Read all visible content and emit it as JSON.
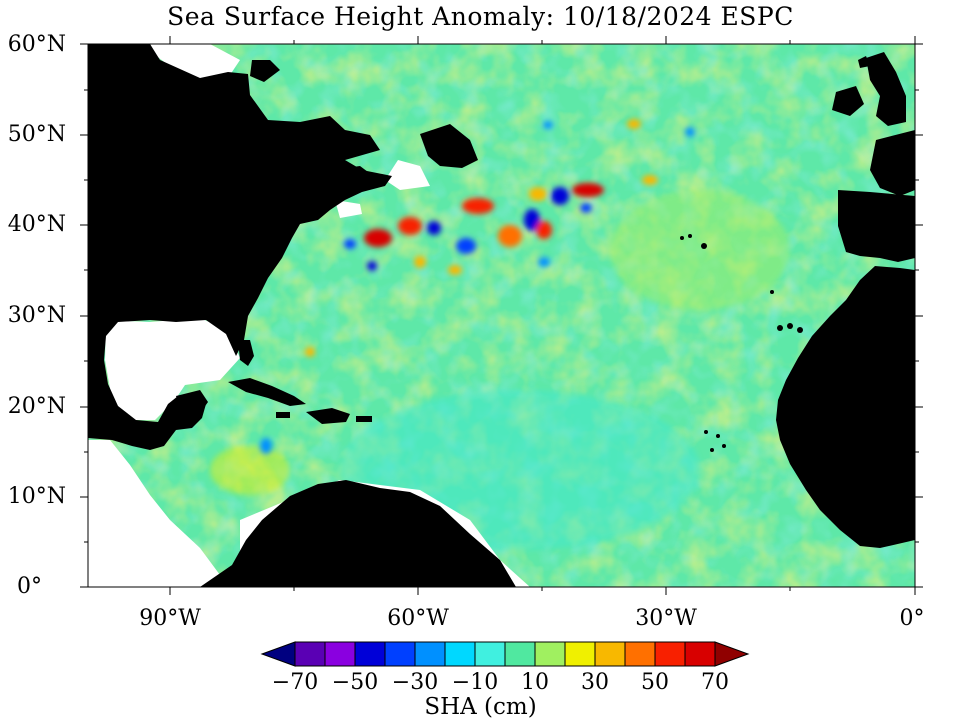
{
  "title": "Sea Surface Height Anomaly: 10/18/2024 ESPC",
  "map": {
    "lat_labels": [
      "60°N",
      "50°N",
      "40°N",
      "30°N",
      "20°N",
      "10°N",
      "0°"
    ],
    "lon_labels": [
      "90°W",
      "60°W",
      "30°W",
      "0°"
    ],
    "colors": {
      "land": "#000000",
      "background": "#ffffff",
      "ocean_base": "#5ee8a8"
    }
  },
  "colorbar": {
    "title": "SHA (cm)",
    "tick_labels": [
      "−70",
      "−50",
      "−30",
      "−10",
      "10",
      "30",
      "50",
      "70"
    ],
    "colors": [
      "#000080",
      "#5a00b4",
      "#8a00e0",
      "#0000d8",
      "#0040ff",
      "#0090ff",
      "#00d8ff",
      "#40f0e0",
      "#50e8a0",
      "#a0f060",
      "#f0f000",
      "#f8b800",
      "#ff7000",
      "#f82000",
      "#d80000",
      "#900000"
    ]
  }
}
